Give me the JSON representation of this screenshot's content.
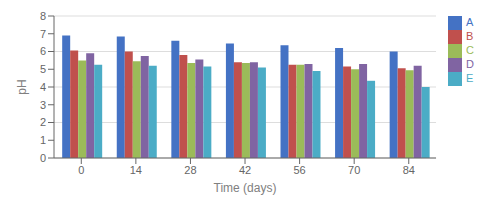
{
  "chart_data": {
    "type": "bar",
    "xlabel": "Time (days)",
    "ylabel": "pH",
    "categories": [
      0,
      14,
      28,
      42,
      56,
      70,
      84
    ],
    "series": [
      {
        "name": "A",
        "color": "#4472C4",
        "values": [
          6.9,
          6.85,
          6.6,
          6.45,
          6.35,
          6.2,
          6.0
        ]
      },
      {
        "name": "B",
        "color": "#C0504D",
        "values": [
          6.05,
          6.0,
          5.8,
          5.4,
          5.25,
          5.15,
          5.05
        ]
      },
      {
        "name": "C",
        "color": "#9BBB59",
        "values": [
          5.5,
          5.45,
          5.35,
          5.35,
          5.25,
          5.0,
          4.95
        ]
      },
      {
        "name": "D",
        "color": "#8064A2",
        "values": [
          5.9,
          5.75,
          5.55,
          5.4,
          5.3,
          5.3,
          5.2
        ]
      },
      {
        "name": "E",
        "color": "#4BACC6",
        "values": [
          5.25,
          5.2,
          5.15,
          5.1,
          4.9,
          4.35,
          4.0
        ]
      }
    ],
    "ylim": [
      0,
      8
    ],
    "yticks": [
      0,
      1,
      2,
      3,
      4,
      5,
      6,
      7,
      8
    ],
    "grid": true,
    "legend": "right"
  }
}
